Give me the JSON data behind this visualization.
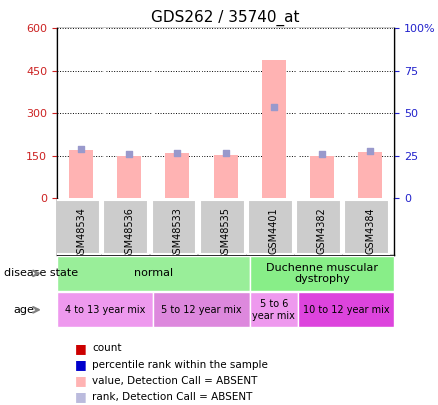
{
  "title": "GDS262 / 35740_at",
  "samples": [
    "GSM48534",
    "GSM48536",
    "GSM48533",
    "GSM48535",
    "GSM4401",
    "GSM4382",
    "GSM4384"
  ],
  "bar_values": [
    170,
    148,
    160,
    153,
    490,
    148,
    163
  ],
  "rank_values": [
    29,
    26,
    27,
    27,
    54,
    26,
    28
  ],
  "bar_color": "#ffb3b3",
  "rank_dot_color": "#9999cc",
  "ylim_left": [
    0,
    600
  ],
  "ylim_right": [
    0,
    100
  ],
  "yticks_left": [
    0,
    150,
    300,
    450,
    600
  ],
  "ytick_labels_left": [
    "0",
    "150",
    "300",
    "450",
    "600"
  ],
  "yticks_right": [
    0,
    25,
    50,
    75,
    100
  ],
  "ytick_labels_right": [
    "0",
    "25",
    "50",
    "75",
    "100%"
  ],
  "disease_state_groups": [
    {
      "label": "normal",
      "start": 0,
      "end": 4,
      "color": "#99ee99"
    },
    {
      "label": "Duchenne muscular\ndystrophy",
      "start": 4,
      "end": 7,
      "color": "#88ee88"
    }
  ],
  "age_groups": [
    {
      "label": "4 to 13 year mix",
      "start": 0,
      "end": 2,
      "color": "#ee99ee"
    },
    {
      "label": "5 to 12 year mix",
      "start": 2,
      "end": 4,
      "color": "#dd88dd"
    },
    {
      "label": "5 to 6\nyear mix",
      "start": 4,
      "end": 5,
      "color": "#ee99ee"
    },
    {
      "label": "10 to 12 year mix",
      "start": 5,
      "end": 7,
      "color": "#dd44dd"
    }
  ],
  "legend_items": [
    {
      "label": "count",
      "color": "#cc0000",
      "marker": "s"
    },
    {
      "label": "percentile rank within the sample",
      "color": "#0000cc",
      "marker": "s"
    },
    {
      "label": "value, Detection Call = ABSENT",
      "color": "#ffb3b3",
      "marker": "s"
    },
    {
      "label": "rank, Detection Call = ABSENT",
      "color": "#bbbbdd",
      "marker": "s"
    }
  ],
  "left_axis_color": "#cc2222",
  "right_axis_color": "#2222cc"
}
